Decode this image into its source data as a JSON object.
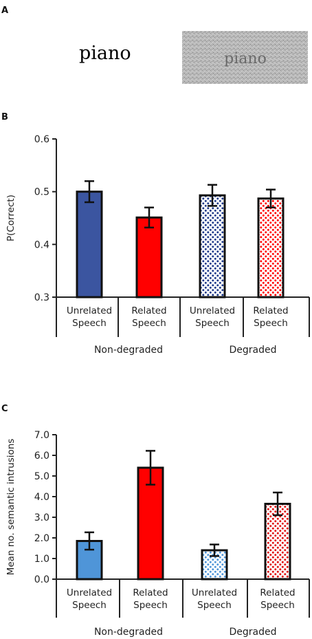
{
  "panel_a": {
    "letter": "A",
    "word_clear": "piano",
    "word_degraded": "piano"
  },
  "panel_letters": [
    "B",
    "C"
  ],
  "colors": {
    "unrelated_nondegraded_b": "#3b55a0",
    "related": "#ff0000",
    "unrelated_degraded_dots_b": "#1f3a8a",
    "unrelated_nondegraded_c": "#4f95d8",
    "unrelated_degraded_dots_c": "#4f95d8",
    "error_bar": "#111111"
  },
  "chart_data": [
    {
      "type": "bar",
      "panel": "B",
      "ylabel": "P(Correct)",
      "ylim": [
        0.3,
        0.6
      ],
      "yticks": [
        "0.3",
        "0.4",
        "0.5",
        "0.6"
      ],
      "categories": [
        "Unrelated Speech",
        "Related Speech",
        "Unrelated Speech",
        "Related Speech"
      ],
      "category_lines": [
        [
          "Unrelated",
          "Speech"
        ],
        [
          "Related",
          "Speech"
        ],
        [
          "Unrelated",
          "Speech"
        ],
        [
          "Related",
          "Speech"
        ]
      ],
      "groups": [
        "Non-degraded",
        "Degraded"
      ],
      "values": [
        0.5,
        0.451,
        0.493,
        0.487
      ],
      "errors": [
        0.02,
        0.019,
        0.02,
        0.017
      ],
      "fill_styles": [
        "solid",
        "solid",
        "dotted",
        "dotted"
      ],
      "grid": false
    },
    {
      "type": "bar",
      "panel": "C",
      "ylabel": "Mean no. semantic intrusions",
      "ylim": [
        0,
        7
      ],
      "yticks": [
        "0.0",
        "1.0",
        "2.0",
        "3.0",
        "4.0",
        "5.0",
        "6.0",
        "7.0"
      ],
      "categories": [
        "Unrelated Speech",
        "Related Speech",
        "Unrelated Speech",
        "Related Speech"
      ],
      "category_lines": [
        [
          "Unrelated",
          "Speech"
        ],
        [
          "Related",
          "Speech"
        ],
        [
          "Unrelated",
          "Speech"
        ],
        [
          "Related",
          "Speech"
        ]
      ],
      "groups": [
        "Non-degraded",
        "Degraded"
      ],
      "values": [
        1.85,
        5.4,
        1.4,
        3.65
      ],
      "errors": [
        0.42,
        0.82,
        0.28,
        0.55
      ],
      "fill_styles": [
        "solid",
        "solid",
        "dotted",
        "dotted"
      ],
      "grid": false
    }
  ]
}
